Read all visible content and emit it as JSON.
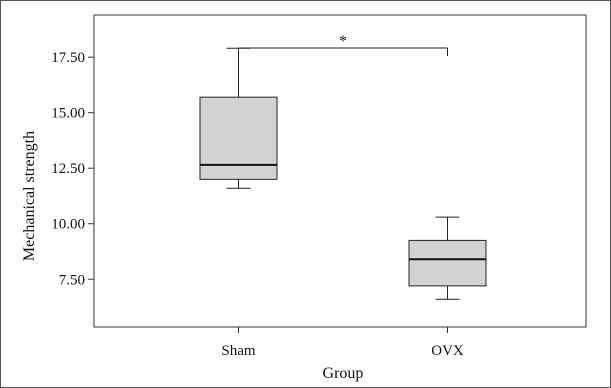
{
  "chart_data": {
    "type": "boxplot",
    "title": "",
    "xlabel": "Group",
    "ylabel": "Mechanical strength",
    "categories": [
      "Sham",
      "OVX"
    ],
    "boxes": [
      {
        "category": "Sham",
        "min": 11.6,
        "q1": 12.0,
        "median": 12.65,
        "q3": 15.7,
        "max": 17.9
      },
      {
        "category": "OVX",
        "min": 6.6,
        "q1": 7.2,
        "median": 8.4,
        "q3": 9.25,
        "max": 10.3
      }
    ],
    "y_ticks": [
      7.5,
      10.0,
      12.5,
      15.0,
      17.5
    ],
    "y_tick_labels": [
      "7.50",
      "10.00",
      "12.50",
      "15.00",
      "17.50"
    ],
    "ylim": [
      5.35,
      19.4
    ],
    "box_fill": "#d3d3d3",
    "significance": {
      "between": [
        "Sham",
        "OVX"
      ],
      "label": "*"
    },
    "grid": false,
    "legend": "none"
  }
}
